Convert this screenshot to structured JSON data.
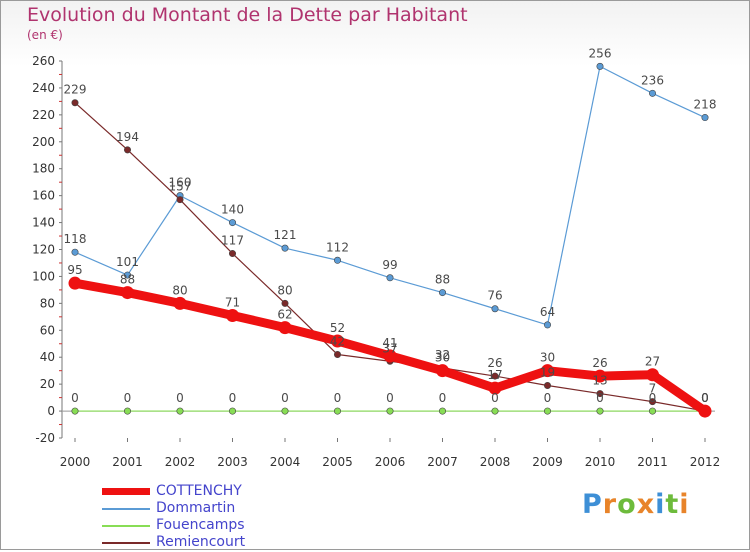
{
  "title": "Evolution du Montant de la Dette par Habitant",
  "unit": "(en €)",
  "logo": "Proxiti",
  "chart_data": {
    "type": "line",
    "x": [
      "2000",
      "2001",
      "2002",
      "2003",
      "2004",
      "2005",
      "2006",
      "2007",
      "2008",
      "2009",
      "2010",
      "2011",
      "2012"
    ],
    "ylim": [
      -20,
      260
    ],
    "yticks": [
      -20,
      0,
      20,
      40,
      60,
      80,
      100,
      120,
      140,
      160,
      180,
      200,
      220,
      240,
      260
    ],
    "grid": false,
    "legend_position": "bottom-left",
    "series": [
      {
        "name": "COTTENCHY",
        "color": "#ee1111",
        "values": [
          95,
          88,
          80,
          71,
          62,
          52,
          41,
          30,
          17,
          30,
          26,
          27,
          0
        ]
      },
      {
        "name": "Dommartin",
        "color": "#5b9bd5",
        "values": [
          118,
          101,
          160,
          140,
          121,
          112,
          99,
          88,
          76,
          64,
          256,
          236,
          218
        ]
      },
      {
        "name": "Fouencamps",
        "color": "#88dd55",
        "values": [
          0,
          0,
          0,
          0,
          0,
          0,
          0,
          0,
          0,
          0,
          0,
          0,
          0
        ]
      },
      {
        "name": "Remiencourt",
        "color": "#7a2a2a",
        "values": [
          229,
          194,
          157,
          117,
          80,
          42,
          37,
          32,
          26,
          19,
          13,
          7,
          0
        ]
      }
    ]
  }
}
